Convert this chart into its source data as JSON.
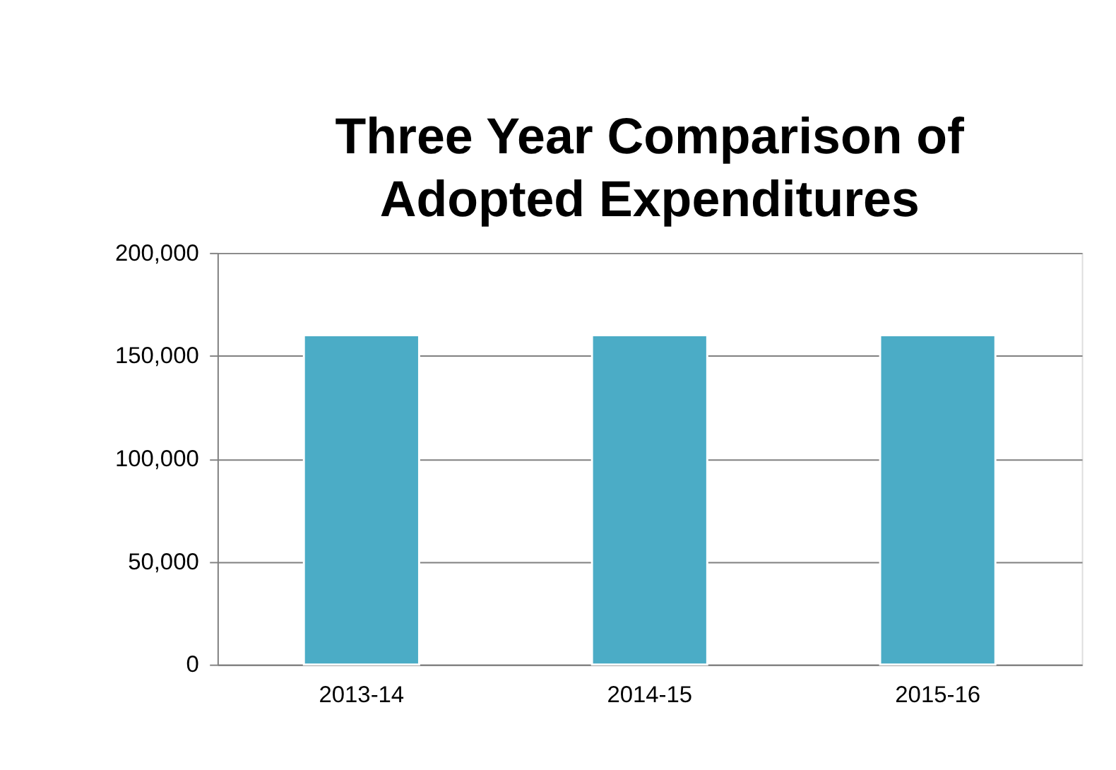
{
  "chart_data": {
    "type": "bar",
    "title": "Three Year Comparison of Adopted Expenditures",
    "categories": [
      "2013-14",
      "2014-15",
      "2015-16"
    ],
    "values": [
      160000,
      160000,
      160000
    ],
    "color": "#4bacc6",
    "ylim": [
      0,
      200000
    ],
    "yticks": [
      0,
      {
        "value": 50000,
        "label": "50,000"
      },
      {
        "value": 100000,
        "label": "100,000"
      },
      {
        "value": 150000,
        "label": "150,000"
      },
      {
        "value": 200000,
        "label": "200,000"
      }
    ],
    "grid": "y"
  }
}
